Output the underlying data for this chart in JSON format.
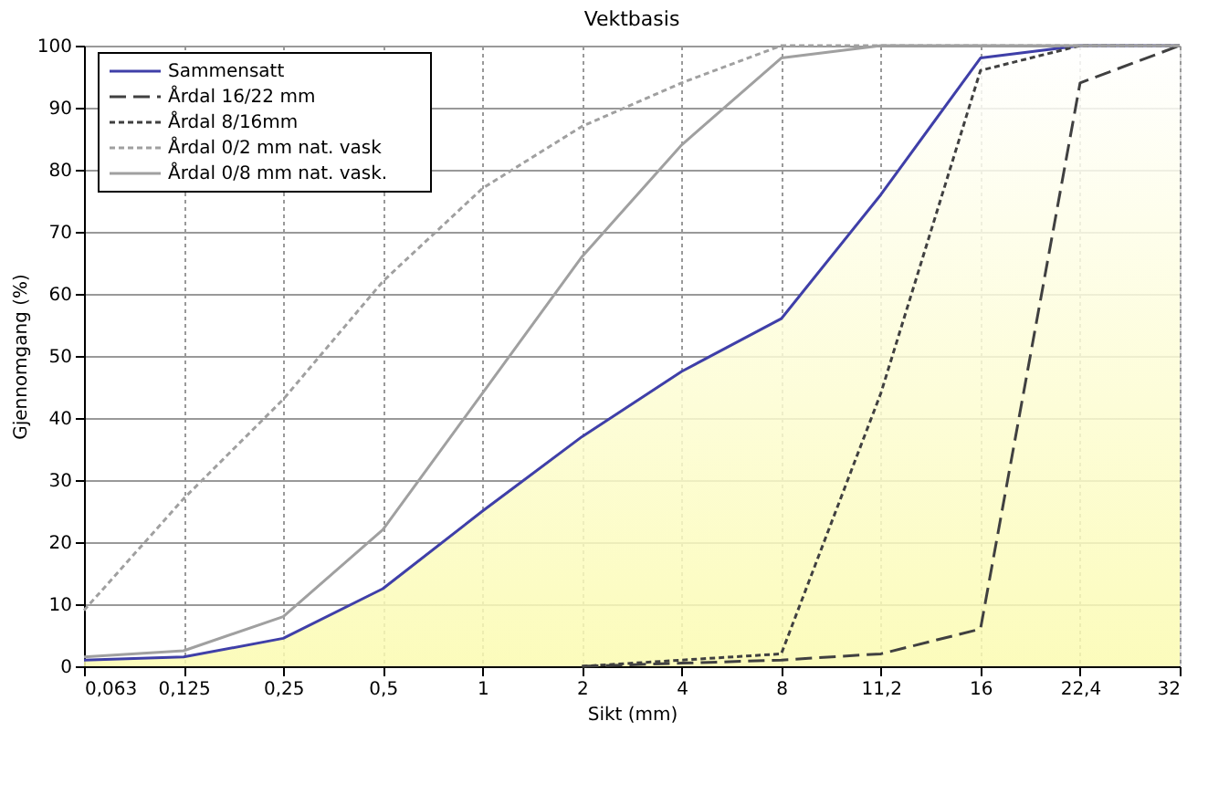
{
  "chart_data": {
    "type": "line",
    "title": "Vektbasis",
    "xlabel": "Sikt (mm)",
    "ylabel": "Gjennomgang (%)",
    "categories": [
      "0,063",
      "0,125",
      "0,25",
      "0,5",
      "1",
      "2",
      "4",
      "8",
      "11,2",
      "16",
      "22,4",
      "32"
    ],
    "series": [
      {
        "name": "Sammensatt",
        "type": "area",
        "color": "#3f3fa8",
        "line_style": "solid",
        "values": [
          1,
          1.5,
          4.5,
          12.5,
          25,
          37,
          47.5,
          56,
          76,
          98,
          100,
          100
        ]
      },
      {
        "name": "Årdal 16/22  mm",
        "color": "#404040",
        "line_style": "dashed",
        "values": [
          null,
          null,
          null,
          null,
          null,
          0,
          0.5,
          1,
          2,
          6,
          94,
          100
        ]
      },
      {
        "name": "Årdal 8/16mm",
        "color": "#404040",
        "line_style": "dotted",
        "values": [
          null,
          null,
          null,
          null,
          null,
          0,
          1,
          2,
          44,
          96,
          100,
          100
        ]
      },
      {
        "name": "Årdal 0/2 mm nat. vask",
        "color": "#a0a0a0",
        "line_style": "dotted",
        "values": [
          9,
          27,
          43,
          62,
          77,
          87,
          94,
          100,
          100,
          100,
          100,
          100
        ]
      },
      {
        "name": "Årdal 0/8 mm nat. vask.",
        "color": "#a0a0a0",
        "line_style": "solid",
        "values": [
          1.5,
          2.5,
          8,
          22,
          44,
          66,
          84,
          98,
          100,
          100,
          100,
          100
        ]
      }
    ],
    "ylim": [
      0,
      100
    ],
    "yticks": [
      0,
      10,
      20,
      30,
      40,
      50,
      60,
      70,
      80,
      90,
      100
    ],
    "grid": true,
    "legend": "top left",
    "marker": "none"
  }
}
